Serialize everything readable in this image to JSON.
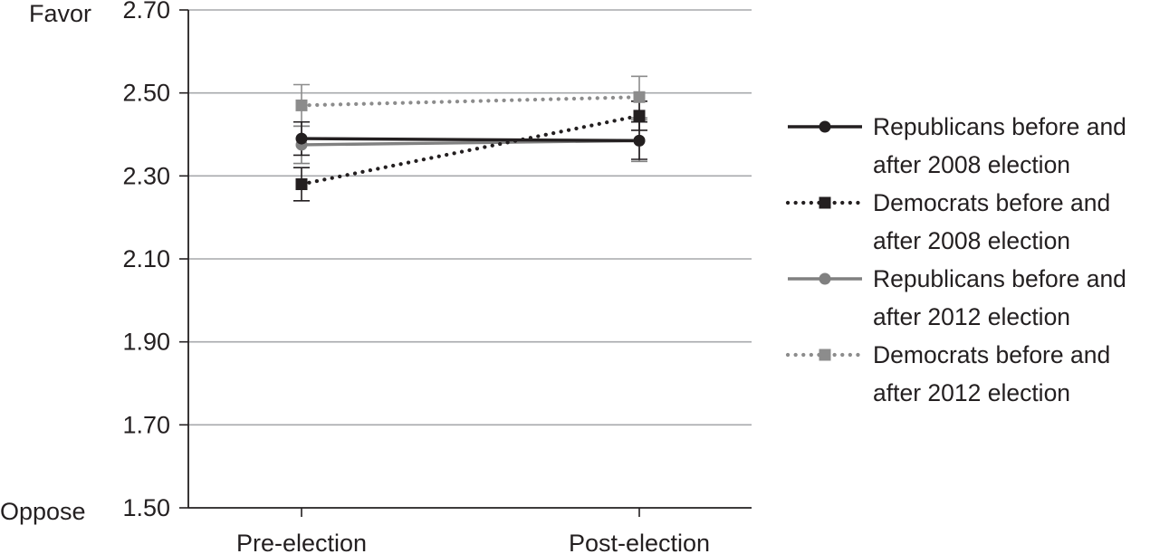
{
  "chart_data": {
    "type": "line",
    "y_top_label": "Favor",
    "y_bottom_label": "Oppose",
    "categories": [
      "Pre-election",
      "Post-election"
    ],
    "ylim": [
      1.5,
      2.7
    ],
    "yticks": [
      "2.70",
      "2.50",
      "2.30",
      "2.10",
      "1.90",
      "1.70",
      "1.50"
    ],
    "ytick_values": [
      2.7,
      2.5,
      2.3,
      2.1,
      1.9,
      1.7,
      1.5
    ],
    "grid": true,
    "legend_position": "right",
    "series": [
      {
        "name": "Republicans before and after 2008 election",
        "legend_lines": [
          "Republicans before and",
          "after 2008 election"
        ],
        "values": [
          2.39,
          2.385
        ],
        "err_low": [
          2.35,
          2.34
        ],
        "err_high": [
          2.43,
          2.43
        ],
        "color": "#231f20",
        "line": "solid",
        "marker": "circle"
      },
      {
        "name": "Democrats before and after 2008 election",
        "legend_lines": [
          "Democrats before and",
          "after 2008 election"
        ],
        "values": [
          2.28,
          2.445
        ],
        "err_low": [
          2.24,
          2.41
        ],
        "err_high": [
          2.32,
          2.48
        ],
        "color": "#231f20",
        "line": "dotted",
        "marker": "square"
      },
      {
        "name": "Republicans before and after 2012 election",
        "legend_lines": [
          "Republicans before and",
          "after 2012 election"
        ],
        "values": [
          2.375,
          2.385
        ],
        "err_low": [
          2.33,
          2.335
        ],
        "err_high": [
          2.42,
          2.435
        ],
        "color": "#808080",
        "line": "solid",
        "marker": "circle"
      },
      {
        "name": "Democrats before and after 2012 election",
        "legend_lines": [
          "Democrats before and",
          "after 2012 election"
        ],
        "values": [
          2.47,
          2.49
        ],
        "err_low": [
          2.42,
          2.44
        ],
        "err_high": [
          2.52,
          2.54
        ],
        "color": "#8c8c8c",
        "line": "dotted",
        "marker": "square"
      }
    ]
  }
}
